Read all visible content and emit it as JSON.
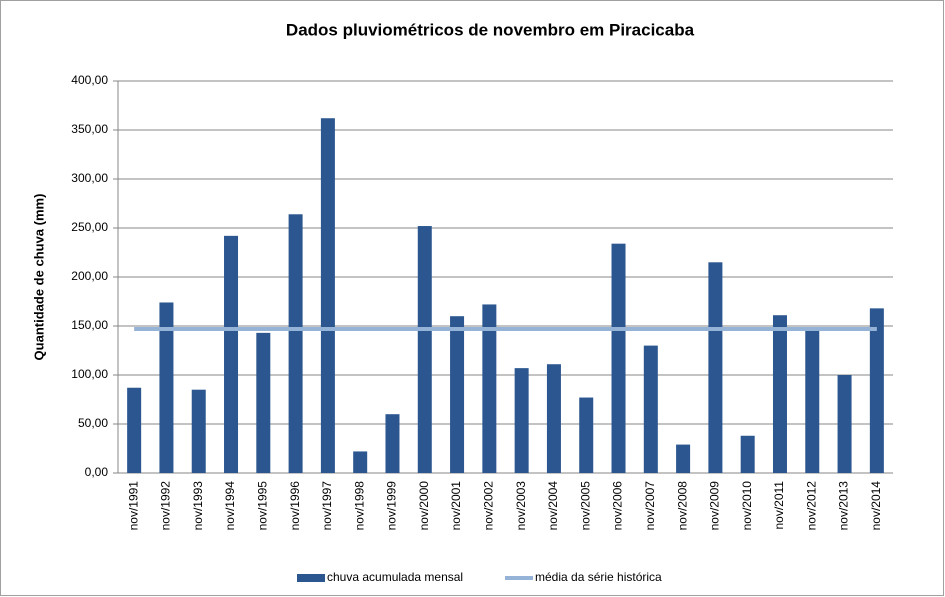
{
  "chart_data": {
    "type": "bar",
    "title": "Dados pluviométricos de novembro em Piracicaba",
    "y_label": "Quantidade de chuva (mm)",
    "categories": [
      "nov/1991",
      "nov/1992",
      "nov/1993",
      "nov/1994",
      "nov/1995",
      "nov/1996",
      "nov/1997",
      "nov/1998",
      "nov/1999",
      "nov/2000",
      "nov/2001",
      "nov/2002",
      "nov/2003",
      "nov/2004",
      "nov/2005",
      "nov/2006",
      "nov/2007",
      "nov/2008",
      "nov/2009",
      "nov/2010",
      "nov/2011",
      "nov/2012",
      "nov/2013",
      "nov/2014"
    ],
    "series": [
      {
        "name": "chuva acumulada mensal",
        "type": "bar",
        "color": "#2b5690",
        "values": [
          87,
          174,
          85,
          242,
          143,
          264,
          362,
          22,
          60,
          252,
          160,
          172,
          107,
          111,
          77,
          234,
          130,
          29,
          215,
          38,
          161,
          146,
          100,
          168
        ]
      },
      {
        "name": "média da série histórica",
        "type": "line",
        "color": "#95b3d7",
        "values": [
          147,
          147,
          147,
          147,
          147,
          147,
          147,
          147,
          147,
          147,
          147,
          147,
          147,
          147,
          147,
          147,
          147,
          147,
          147,
          147,
          147,
          147,
          147,
          147
        ]
      }
    ],
    "ylim": [
      0,
      400
    ],
    "yticks": [
      {
        "value": 0,
        "label": "0,00"
      },
      {
        "value": 50,
        "label": "50,00"
      },
      {
        "value": 100,
        "label": "100,00"
      },
      {
        "value": 150,
        "label": "150,00"
      },
      {
        "value": 200,
        "label": "200,00"
      },
      {
        "value": 250,
        "label": "250,00"
      },
      {
        "value": 300,
        "label": "300,00"
      },
      {
        "value": 350,
        "label": "350,00"
      },
      {
        "value": 400,
        "label": "400,00"
      }
    ],
    "grid": true,
    "legend": "bottom"
  }
}
